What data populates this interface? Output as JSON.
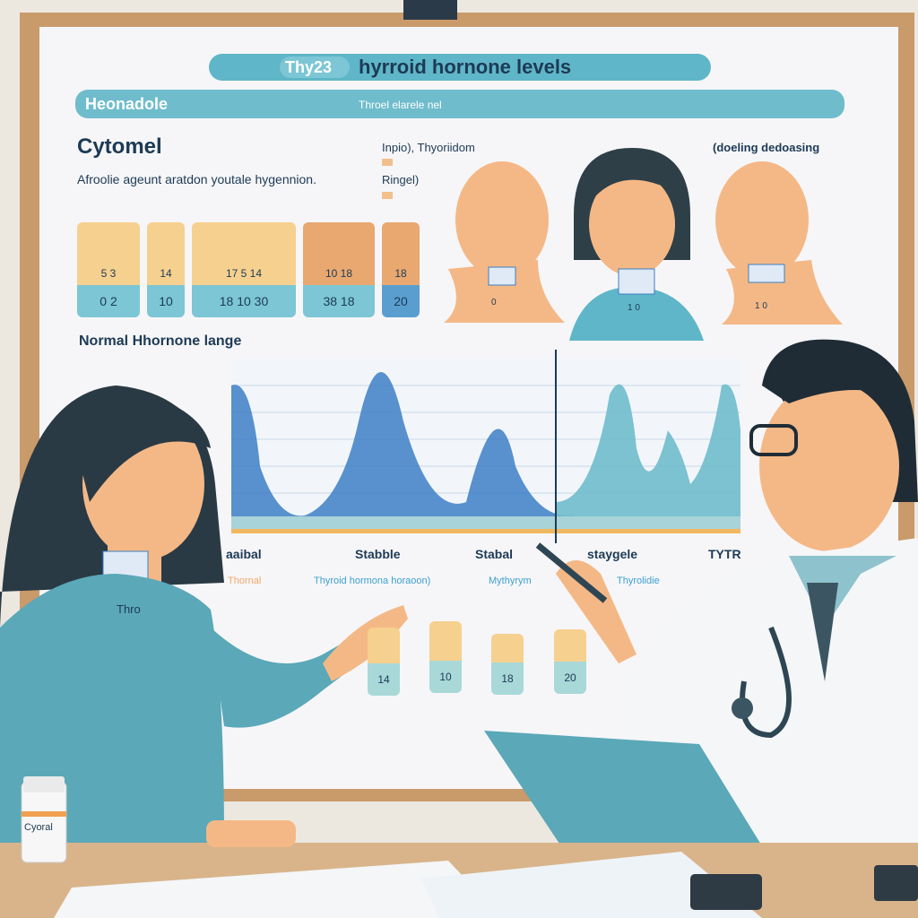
{
  "board": {
    "title_badge": "Thy23",
    "title": "hyrroid hornone levels",
    "banner_left": "Heonadole",
    "banner_center": "Throel elarele nel",
    "drug_name": "Cytomel",
    "description": "Afroolie ageunt aratdon youtale hygennion.",
    "legend_1": "Inpio), Thyoriidom",
    "legend_2": "Ringel)",
    "right_caption": "(doeling dedoasing",
    "range_label": "Normal Hhornone lange",
    "cards": [
      {
        "top": "5   3",
        "bottom": "0   2"
      },
      {
        "top": "14",
        "bottom": "10"
      },
      {
        "top": "17    5    14",
        "bottom": "18   10   30"
      },
      {
        "top": "10   18",
        "bottom": "38   18"
      },
      {
        "top": "18",
        "bottom": "20"
      }
    ],
    "neck_tags": [
      "0",
      "1 0",
      "1 0"
    ],
    "chart_axis_labels": [
      "aaibal",
      "Stabble",
      "Stabal",
      "staygele",
      "TYTR"
    ],
    "footer_labels": [
      "Thornal",
      "Thyroid hormona horaoon)",
      "Mythyrym",
      "Thyrolidie"
    ],
    "small_cards": [
      "14",
      "10",
      "18",
      "20"
    ]
  },
  "patient_neck_tag": "Thro",
  "bottle_label": "Cyoral",
  "colors": {
    "teal": "#5fb6c8",
    "blue": "#3d7fc4",
    "peach": "#f6c98e",
    "wood": "#c99a6a",
    "navy": "#1d3a55"
  }
}
